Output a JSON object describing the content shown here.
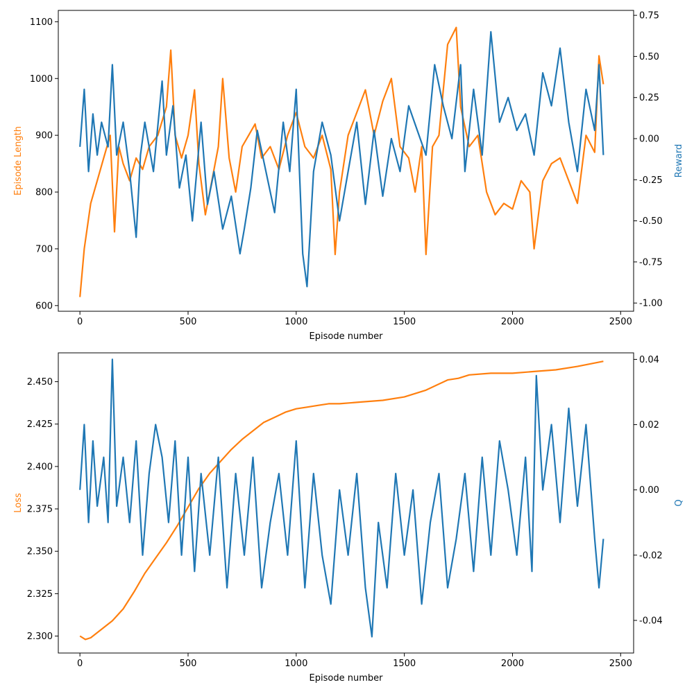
{
  "colors": {
    "orange": "#ff7f0e",
    "blue": "#1f77b4"
  },
  "chart_data": [
    {
      "type": "line",
      "xlabel": "Episode number",
      "ylabel_left": "Episode Length",
      "ylabel_right": "Reward",
      "xlim": [
        -100,
        2560
      ],
      "ylim_left": [
        590,
        1120
      ],
      "ylim_right": [
        -1.05,
        0.78
      ],
      "xticks": [
        0,
        500,
        1000,
        1500,
        2000,
        2500
      ],
      "yticks_left": [
        600,
        700,
        800,
        900,
        1000,
        1100
      ],
      "yticks_right": [
        "-1.00",
        "-0.75",
        "-0.50",
        "-0.25",
        "0.00",
        "0.25",
        "0.50",
        "0.75"
      ],
      "series": [
        {
          "axis": "left",
          "color": "#ff7f0e",
          "x": [
            0,
            20,
            50,
            80,
            110,
            140,
            160,
            180,
            200,
            230,
            260,
            290,
            320,
            360,
            400,
            420,
            440,
            470,
            500,
            530,
            550,
            580,
            610,
            640,
            660,
            690,
            720,
            750,
            780,
            810,
            840,
            880,
            920,
            960,
            1000,
            1040,
            1080,
            1120,
            1160,
            1180,
            1200,
            1240,
            1280,
            1320,
            1360,
            1400,
            1440,
            1480,
            1520,
            1550,
            1580,
            1600,
            1630,
            1660,
            1700,
            1740,
            1760,
            1800,
            1840,
            1880,
            1920,
            1960,
            2000,
            2040,
            2080,
            2100,
            2140,
            2180,
            2220,
            2260,
            2300,
            2340,
            2380,
            2400,
            2420
          ],
          "y": [
            615,
            700,
            780,
            820,
            860,
            900,
            730,
            880,
            850,
            820,
            860,
            840,
            880,
            900,
            950,
            1050,
            900,
            860,
            900,
            980,
            850,
            760,
            820,
            880,
            1000,
            860,
            800,
            880,
            900,
            920,
            860,
            880,
            840,
            900,
            940,
            880,
            860,
            900,
            840,
            690,
            800,
            900,
            940,
            980,
            900,
            960,
            1000,
            880,
            860,
            800,
            880,
            690,
            880,
            900,
            1060,
            1090,
            950,
            880,
            900,
            800,
            760,
            780,
            770,
            820,
            800,
            700,
            820,
            850,
            860,
            820,
            780,
            900,
            870,
            1040,
            990
          ]
        },
        {
          "axis": "right",
          "color": "#1f77b4",
          "x": [
            0,
            20,
            40,
            60,
            80,
            100,
            130,
            150,
            170,
            200,
            230,
            260,
            280,
            300,
            340,
            380,
            400,
            430,
            460,
            490,
            520,
            560,
            590,
            620,
            660,
            700,
            740,
            760,
            790,
            820,
            860,
            900,
            940,
            970,
            1000,
            1030,
            1050,
            1080,
            1120,
            1160,
            1200,
            1240,
            1280,
            1320,
            1360,
            1400,
            1440,
            1480,
            1520,
            1560,
            1600,
            1640,
            1680,
            1720,
            1760,
            1780,
            1820,
            1860,
            1900,
            1940,
            1980,
            2020,
            2060,
            2100,
            2140,
            2180,
            2220,
            2260,
            2300,
            2340,
            2380,
            2400,
            2420
          ],
          "y": [
            -0.05,
            0.3,
            -0.2,
            0.15,
            -0.1,
            0.1,
            -0.05,
            0.45,
            -0.1,
            0.1,
            -0.2,
            -0.6,
            -0.1,
            0.1,
            -0.2,
            0.35,
            -0.1,
            0.2,
            -0.3,
            -0.1,
            -0.5,
            0.1,
            -0.4,
            -0.2,
            -0.55,
            -0.35,
            -0.7,
            -0.55,
            -0.3,
            0.05,
            -0.2,
            -0.45,
            0.1,
            -0.2,
            0.3,
            -0.7,
            -0.9,
            -0.2,
            0.1,
            -0.1,
            -0.5,
            -0.2,
            0.1,
            -0.4,
            0.05,
            -0.35,
            0.0,
            -0.2,
            0.2,
            0.05,
            -0.1,
            0.45,
            0.2,
            0.0,
            0.45,
            -0.2,
            0.3,
            -0.1,
            0.65,
            0.1,
            0.25,
            0.05,
            0.15,
            -0.1,
            0.4,
            0.2,
            0.55,
            0.1,
            -0.2,
            0.3,
            0.05,
            0.45,
            -0.1
          ]
        }
      ]
    },
    {
      "type": "line",
      "xlabel": "Episode number",
      "ylabel_left": "Loss",
      "ylabel_right": "Q",
      "xlim": [
        -100,
        2560
      ],
      "ylim_left": [
        2.29,
        2.467
      ],
      "ylim_right": [
        -0.05,
        0.042
      ],
      "xticks": [
        0,
        500,
        1000,
        1500,
        2000,
        2500
      ],
      "yticks_left": [
        "2.300",
        "2.325",
        "2.350",
        "2.375",
        "2.400",
        "2.425",
        "2.450"
      ],
      "yticks_right": [
        "-0.04",
        "-0.02",
        "0.00",
        "0.02",
        "0.04"
      ],
      "series": [
        {
          "axis": "left",
          "color": "#ff7f0e",
          "x": [
            0,
            25,
            50,
            100,
            150,
            200,
            250,
            300,
            350,
            400,
            450,
            500,
            550,
            600,
            650,
            700,
            750,
            800,
            850,
            900,
            950,
            1000,
            1050,
            1100,
            1150,
            1200,
            1300,
            1400,
            1500,
            1600,
            1700,
            1750,
            1800,
            1900,
            2000,
            2100,
            2200,
            2300,
            2420
          ],
          "y": [
            2.3,
            2.298,
            2.299,
            2.304,
            2.309,
            2.316,
            2.326,
            2.337,
            2.346,
            2.355,
            2.365,
            2.376,
            2.387,
            2.396,
            2.403,
            2.41,
            2.416,
            2.421,
            2.426,
            2.429,
            2.432,
            2.434,
            2.435,
            2.436,
            2.437,
            2.437,
            2.438,
            2.439,
            2.441,
            2.445,
            2.451,
            2.452,
            2.454,
            2.455,
            2.455,
            2.456,
            2.457,
            2.459,
            2.462
          ]
        },
        {
          "axis": "right",
          "color": "#1f77b4",
          "x": [
            0,
            20,
            40,
            60,
            80,
            110,
            130,
            150,
            170,
            200,
            230,
            260,
            290,
            320,
            350,
            380,
            410,
            440,
            470,
            500,
            530,
            560,
            600,
            640,
            680,
            720,
            760,
            800,
            840,
            880,
            920,
            960,
            1000,
            1040,
            1080,
            1120,
            1160,
            1200,
            1240,
            1280,
            1320,
            1350,
            1380,
            1420,
            1460,
            1500,
            1540,
            1580,
            1620,
            1660,
            1700,
            1740,
            1780,
            1820,
            1860,
            1900,
            1940,
            1980,
            2020,
            2060,
            2090,
            2110,
            2140,
            2180,
            2220,
            2260,
            2300,
            2340,
            2380,
            2400,
            2420
          ],
          "y": [
            0.0,
            0.02,
            -0.01,
            0.015,
            -0.005,
            0.01,
            -0.01,
            0.04,
            -0.005,
            0.01,
            -0.01,
            0.015,
            -0.02,
            0.005,
            0.02,
            0.01,
            -0.01,
            0.015,
            -0.02,
            0.01,
            -0.025,
            0.005,
            -0.02,
            0.01,
            -0.03,
            0.005,
            -0.02,
            0.01,
            -0.03,
            -0.01,
            0.005,
            -0.02,
            0.015,
            -0.03,
            0.005,
            -0.02,
            -0.035,
            0.0,
            -0.02,
            0.005,
            -0.03,
            -0.045,
            -0.01,
            -0.03,
            0.005,
            -0.02,
            0.0,
            -0.035,
            -0.01,
            0.005,
            -0.03,
            -0.015,
            0.005,
            -0.025,
            0.01,
            -0.02,
            0.015,
            0.0,
            -0.02,
            0.01,
            -0.025,
            0.035,
            0.0,
            0.02,
            -0.01,
            0.025,
            -0.005,
            0.02,
            -0.015,
            -0.03,
            -0.015
          ]
        }
      ]
    }
  ]
}
